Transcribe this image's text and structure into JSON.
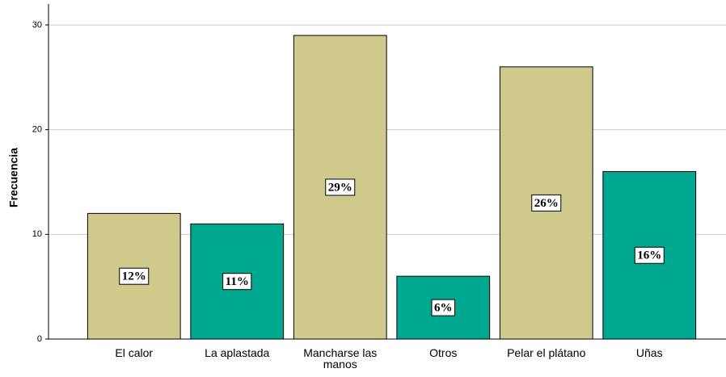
{
  "chart_data": {
    "type": "bar",
    "y_label": "Frecuencia",
    "categories": [
      "El calor",
      "La aplastada",
      "Mancharse las manos",
      "Otros",
      "Pelar el plátano",
      "Uñas"
    ],
    "values": [
      12,
      11,
      29,
      6,
      26,
      16
    ],
    "value_labels": [
      "12%",
      "11%",
      "29%",
      "6%",
      "26%",
      "16%"
    ],
    "colors": [
      "#d0c98c",
      "#00a890",
      "#d0c98c",
      "#00a890",
      "#d0c98c",
      "#00a890"
    ],
    "ylim": [
      0,
      32
    ],
    "yticks": [
      0,
      10,
      20,
      30
    ],
    "grid": true
  }
}
